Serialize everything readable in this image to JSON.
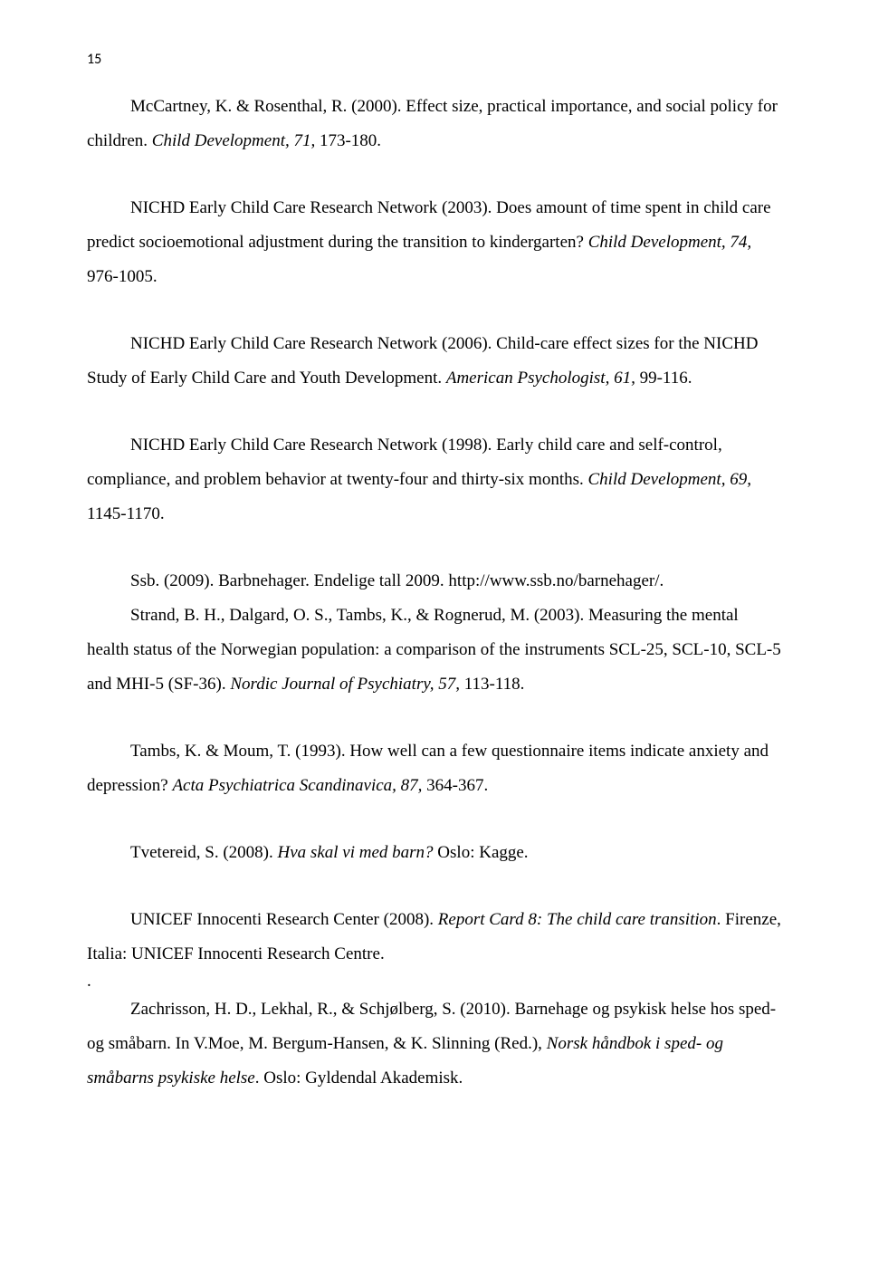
{
  "pageNumber": "15",
  "refs": [
    {
      "plain1": "McCartney, K. & Rosenthal, R. (2000). Effect size, practical importance, and social policy for children. ",
      "ital1": "Child Development, 71,",
      "plain2": " 173-180."
    },
    {
      "plain1": "NICHD Early Child Care Research Network (2003). Does amount of time spent in child care predict socioemotional adjustment during the transition to kindergarten? ",
      "ital1": "Child Development, 74,",
      "plain2": " 976-1005."
    },
    {
      "plain1": "NICHD Early Child Care Research Network (2006). Child-care effect sizes for the NICHD Study of Early Child Care and Youth Development. ",
      "ital1": "American Psychologist, 61,",
      "plain2": " 99-116."
    },
    {
      "plain1": "NICHD Early Child Care Research Network (1998). Early child care and self-control, compliance, and problem behavior at twenty-four and thirty-six months. ",
      "ital1": "Child Development, 69,",
      "plain2": " 1145-1170."
    },
    {
      "plain1": "Ssb. (2009). Barbnehager. Endelige tall 2009. http://www.ssb.no/barnehager/.",
      "ital1": "",
      "plain2": ""
    },
    {
      "plain1": "Strand, B. H., Dalgard, O. S., Tambs, K., & Rognerud, M. (2003). Measuring the mental health status of the Norwegian population: a comparison of the instruments SCL-25, SCL-10, SCL-5 and MHI-5 (SF-36). ",
      "ital1": "Nordic Journal of Psychiatry, 57,",
      "plain2": " 113-118."
    },
    {
      "plain1": "Tambs, K. & Moum, T. (1993). How well can a few questionnaire items indicate anxiety and depression? ",
      "ital1": "Acta Psychiatrica Scandinavica, 87,",
      "plain2": " 364-367."
    },
    {
      "plain1": "Tvetereid, S. (2008). ",
      "ital1": "Hva skal vi med barn?",
      "plain2": " Oslo: Kagge."
    },
    {
      "plain1": "UNICEF Innocenti Research Center (2008). ",
      "ital1": "Report Card 8: The child care transition",
      "plain2": ". Firenze, Italia: UNICEF Innocenti Research Centre."
    },
    {
      "plain1": "Zachrisson, H. D., Lekhal, R., & Schjølberg, S. (2010). Barnehage og psykisk helse hos sped- og småbarn. In V.Moe, M. Bergum-Hansen, & K. Slinning (Red.), ",
      "ital1": "Norsk håndbok i sped- og småbarns psykiske helse",
      "plain2": ". Oslo: Gyldendal Akademisk."
    }
  ],
  "dot": "."
}
